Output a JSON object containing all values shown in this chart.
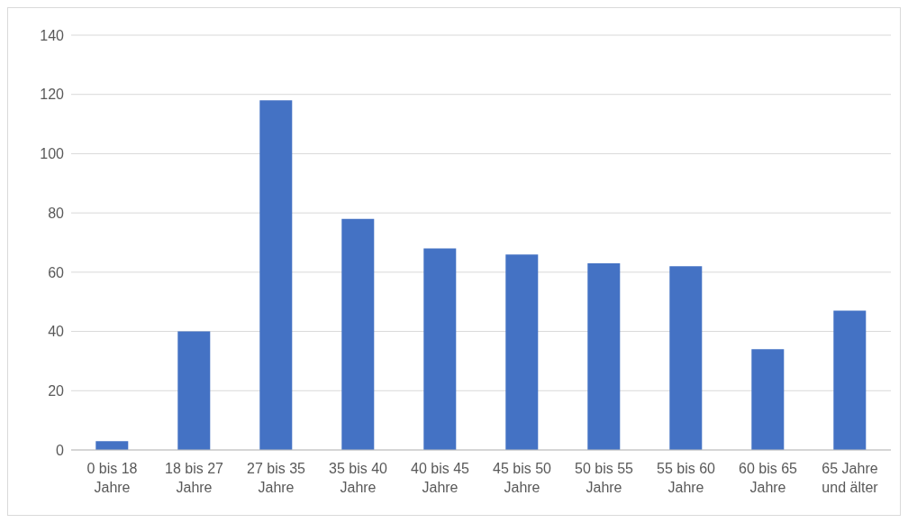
{
  "chart_data": {
    "type": "bar",
    "categories": [
      "0 bis 18 Jahre",
      "18 bis 27 Jahre",
      "27 bis 35 Jahre",
      "35 bis 40 Jahre",
      "40 bis 45 Jahre",
      "45 bis 50 Jahre",
      "50 bis 55 Jahre",
      "55 bis 60 Jahre",
      "60 bis 65 Jahre",
      "65 Jahre und älter"
    ],
    "values": [
      3,
      40,
      118,
      78,
      68,
      66,
      63,
      62,
      34,
      47
    ],
    "color": "#4472c4",
    "ylim": [
      0,
      140
    ],
    "yticks": [
      0,
      20,
      40,
      60,
      80,
      100,
      120,
      140
    ],
    "grid": "y",
    "legend": false
  }
}
